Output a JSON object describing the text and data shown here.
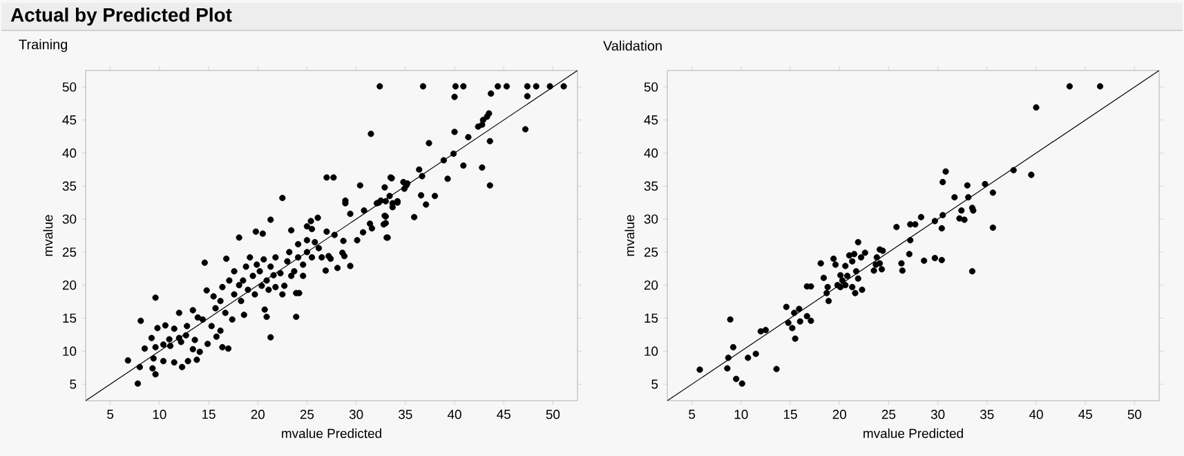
{
  "chart_data": [
    {
      "type": "scatter",
      "title": "Actual by Predicted Plot",
      "subtitle": "Training",
      "xlabel": "mvalue Predicted",
      "ylabel": "mvalue",
      "xlim": [
        2.5,
        52.5
      ],
      "ylim": [
        2.5,
        52.5
      ],
      "xticks": [
        5,
        10,
        15,
        20,
        25,
        30,
        35,
        40,
        45,
        50
      ],
      "yticks": [
        5,
        10,
        15,
        20,
        25,
        30,
        35,
        40,
        45,
        50
      ],
      "marker": "circle",
      "series": [
        {
          "color": "#000000",
          "x": [
            32.4,
            31.5,
            27.0,
            27.7,
            30.4,
            22.5,
            33.6,
            28.9,
            28.9,
            21.3,
            19.8,
            20.5,
            18.1,
            23.4,
            26.1,
            25.4,
            25.0,
            25.5,
            27.0,
            27.8,
            29.4,
            30.8,
            30.7,
            30.1,
            31.6,
            31.4,
            32.8,
            33.1,
            32.9,
            32.1,
            32.5,
            32.9,
            28.7,
            28.1,
            29.4,
            26.9,
            28.6,
            28.8,
            27.2,
            14.6,
            16.8,
            23.9,
            24.2,
            23.9,
            20.9,
            20.7,
            21.3,
            18.6,
            9.6,
            8.1,
            6.8,
            7.8,
            9.6,
            9.3,
            8.0,
            9.4,
            10.4,
            11.5,
            12.3,
            12.9,
            13.8,
            8.5,
            9.6,
            9.2,
            9.8,
            10.6,
            10.4,
            11.1,
            11.0,
            12.0,
            12.2,
            12.0,
            11.5,
            12.8,
            12.7,
            13.6,
            14.1,
            13.4,
            14.9,
            16.4,
            17.0,
            13.4,
            13.9,
            14.4,
            15.3,
            16.2,
            15.8,
            14.8,
            15.5,
            16.2,
            15.7,
            16.7,
            17.4,
            16.4,
            17.1,
            17.6,
            18.3,
            18.1,
            17.6,
            18.8,
            19.5,
            20.2,
            20.9,
            21.3,
            21.8,
            22.3,
            22.7,
            23.0,
            23.2,
            23.7,
            24.1,
            24.6,
            25.0,
            25.5,
            26.2,
            19.0,
            19.7,
            20.4,
            21.1,
            21.8,
            20.6,
            19.9,
            19.2,
            18.5,
            21.6,
            22.5,
            23.4,
            24.1,
            25.0,
            25.8,
            26.5,
            27.4,
            24.6,
            32.3,
            33.0,
            33.7,
            34.2,
            33.6,
            36.8,
            40.1,
            40.9,
            40.0,
            44.4,
            45.3,
            47.4,
            48.3,
            49.7,
            51.1,
            47.4,
            47.2,
            43.7,
            43.5,
            43.3,
            42.9,
            42.8,
            42.4,
            43.6,
            43.6,
            42.8,
            41.4,
            40.0,
            39.9,
            40.9,
            38.9,
            39.3,
            37.4,
            36.4,
            36.7,
            36.6,
            37.1,
            38.0,
            35.9,
            34.8,
            35.1,
            34.9,
            35.2,
            33.5,
            33.4,
            33.7,
            34.2,
            33.0,
            33.2,
            33.0
          ],
          "values": [
            50.1,
            42.9,
            36.3,
            36.3,
            35.1,
            33.2,
            36.2,
            32.8,
            32.4,
            29.9,
            28.1,
            27.8,
            27.2,
            28.3,
            30.2,
            29.7,
            28.9,
            28.5,
            28.1,
            27.6,
            30.8,
            31.3,
            28.0,
            26.8,
            28.6,
            29.3,
            29.2,
            27.2,
            30.5,
            32.4,
            32.8,
            34.8,
            26.7,
            22.6,
            22.9,
            22.2,
            24.9,
            24.4,
            24.4,
            23.4,
            24.0,
            18.8,
            18.8,
            15.2,
            15.2,
            16.3,
            12.1,
            15.5,
            18.1,
            14.6,
            8.6,
            5.1,
            6.5,
            7.4,
            7.6,
            8.9,
            8.5,
            8.3,
            7.6,
            8.5,
            8.7,
            10.4,
            10.6,
            12.0,
            13.5,
            13.9,
            11.0,
            10.8,
            11.8,
            12.0,
            11.4,
            15.8,
            13.4,
            13.8,
            12.4,
            11.7,
            9.9,
            10.3,
            11.1,
            10.6,
            10.4,
            16.2,
            15.1,
            14.8,
            13.8,
            13.1,
            12.2,
            19.2,
            18.3,
            17.6,
            16.5,
            15.8,
            14.8,
            19.7,
            20.7,
            18.6,
            17.6,
            20.0,
            22.1,
            22.8,
            21.4,
            22.1,
            20.7,
            22.8,
            24.2,
            21.8,
            19.9,
            23.6,
            25.0,
            22.1,
            24.2,
            23.1,
            25.0,
            24.2,
            25.6,
            19.3,
            18.6,
            19.9,
            19.3,
            19.7,
            23.9,
            23.1,
            24.2,
            20.7,
            21.5,
            18.6,
            21.4,
            26.2,
            26.8,
            26.5,
            24.2,
            24.0,
            21.4,
            32.5,
            32.7,
            32.4,
            32.7,
            36.2,
            50.1,
            50.1,
            50.1,
            48.5,
            50.1,
            50.1,
            50.1,
            50.1,
            50.1,
            50.1,
            48.6,
            43.6,
            49.0,
            46.0,
            45.5,
            45.0,
            44.3,
            44.0,
            41.8,
            35.1,
            37.8,
            42.4,
            43.2,
            39.9,
            38.1,
            38.9,
            36.1,
            41.5,
            37.5,
            36.5,
            33.6,
            32.2,
            33.5,
            30.3,
            35.6,
            35.1,
            34.6,
            35.4,
            36.3,
            33.5,
            31.8,
            32.5,
            30.4,
            27.2,
            29.4
          ]
        },
        {
          "type": "line",
          "color": "#000000",
          "marker": "none",
          "x": [
            2.5,
            52.5
          ],
          "values": [
            2.5,
            52.5
          ]
        }
      ]
    },
    {
      "type": "scatter",
      "title": "Validation",
      "xlabel": "mvalue Predicted",
      "ylabel": "mvalue",
      "xlim": [
        2.5,
        52.5
      ],
      "ylim": [
        2.5,
        52.5
      ],
      "xticks": [
        5,
        10,
        15,
        20,
        25,
        30,
        35,
        40,
        45,
        50
      ],
      "yticks": [
        5,
        10,
        15,
        20,
        25,
        30,
        35,
        40,
        45,
        50
      ],
      "marker": "circle",
      "series": [
        {
          "color": "#000000",
          "x": [
            43.4,
            46.5,
            40.0,
            37.7,
            39.5,
            34.8,
            35.6,
            33.0,
            33.1,
            31.7,
            30.8,
            30.5,
            32.4,
            33.5,
            33.6,
            32.2,
            32.7,
            30.5,
            30.4,
            35.6,
            33.5,
            29.7,
            28.3,
            27.7,
            27.2,
            25.8,
            27.2,
            27.1,
            28.6,
            29.7,
            30.4,
            26.3,
            26.4,
            24.3,
            24.1,
            24.4,
            23.8,
            23.7,
            23.5,
            24.1,
            21.9,
            22.6,
            22.2,
            21.5,
            21.0,
            20.6,
            21.3,
            21.7,
            21.9,
            22.3,
            21.6,
            20.8,
            20.1,
            20.3,
            19.8,
            20.1,
            20.6,
            21.3,
            19.4,
            19.6,
            18.1,
            18.4,
            18.8,
            18.7,
            18.9,
            16.7,
            17.1,
            14.6,
            15.4,
            15.9,
            14.8,
            15.2,
            16.0,
            15.5,
            16.7,
            17.1,
            12.0,
            12.5,
            11.5,
            10.7,
            8.9,
            9.2,
            8.7,
            8.6,
            5.8,
            9.5,
            10.1,
            13.6
          ],
          "values": [
            50.1,
            50.1,
            46.9,
            37.4,
            36.7,
            35.3,
            34.0,
            35.1,
            33.3,
            33.3,
            37.2,
            35.6,
            31.3,
            31.7,
            31.3,
            30.1,
            29.9,
            30.6,
            28.6,
            28.7,
            22.1,
            29.7,
            30.3,
            29.2,
            29.2,
            28.8,
            26.8,
            24.7,
            23.7,
            24.1,
            23.8,
            23.3,
            22.2,
            22.4,
            25.4,
            25.2,
            24.2,
            23.1,
            22.2,
            23.3,
            26.5,
            24.9,
            24.2,
            24.7,
            24.5,
            22.9,
            23.6,
            22.1,
            21.0,
            19.3,
            18.8,
            21.4,
            21.5,
            20.7,
            20.0,
            19.7,
            20.0,
            19.7,
            24.0,
            23.1,
            23.3,
            21.1,
            19.7,
            18.8,
            17.6,
            19.8,
            19.8,
            16.7,
            15.8,
            16.4,
            14.3,
            13.5,
            14.5,
            11.9,
            15.3,
            14.6,
            13.0,
            13.2,
            9.6,
            9.0,
            14.8,
            10.6,
            9.0,
            7.4,
            7.2,
            5.8,
            5.1,
            7.3
          ]
        },
        {
          "type": "line",
          "color": "#000000",
          "marker": "none",
          "x": [
            2.5,
            52.5
          ],
          "values": [
            2.5,
            52.5
          ]
        }
      ]
    }
  ]
}
